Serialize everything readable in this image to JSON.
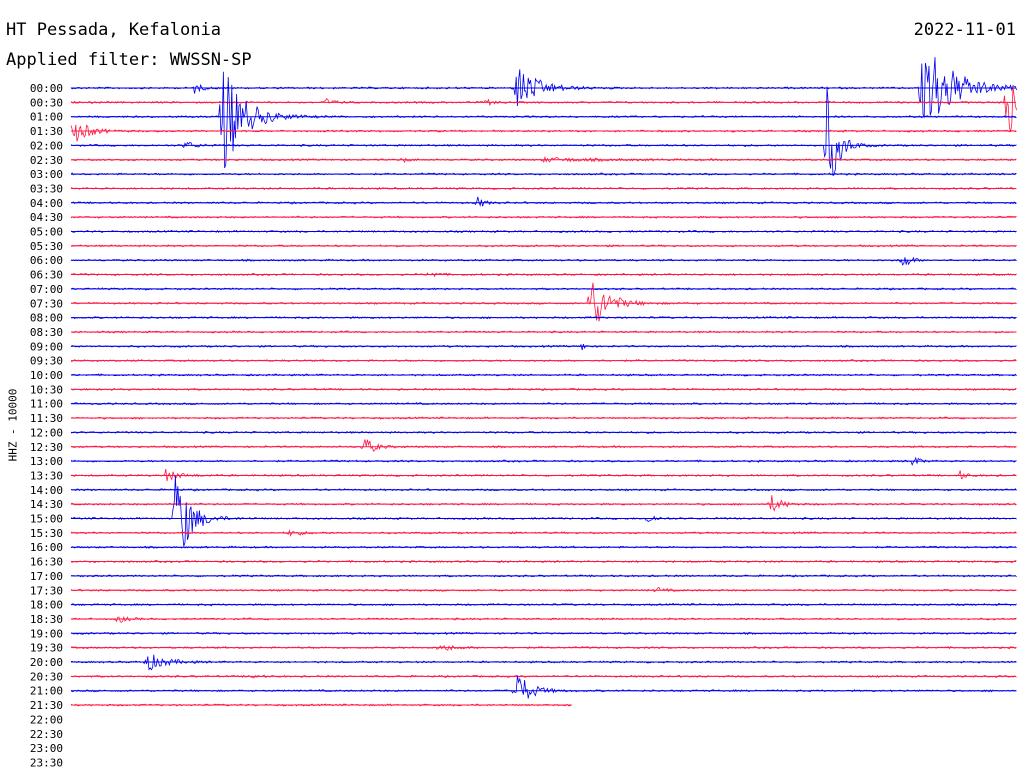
{
  "header": {
    "title": "HT Pessada, Kefalonia",
    "date": "2022-11-01",
    "filter": "Applied filter: WWSSN-SP"
  },
  "colors": {
    "even": "#0000ee",
    "odd": "#ff1744",
    "text": "#000000"
  },
  "chart_data": {
    "type": "line",
    "title": "HT Pessada, Kefalonia",
    "subtitle": "Applied filter: WWSSN-SP",
    "ylabel": "HHZ - 10000",
    "xlabel": "",
    "categories": [
      "00:00",
      "00:30",
      "01:00",
      "01:30",
      "02:00",
      "02:30",
      "03:00",
      "03:30",
      "04:00",
      "04:30",
      "05:00",
      "05:30",
      "06:00",
      "06:30",
      "07:00",
      "07:30",
      "08:00",
      "08:30",
      "09:00",
      "09:30",
      "10:00",
      "10:30",
      "11:00",
      "11:30",
      "12:00",
      "12:30",
      "13:00",
      "13:30",
      "14:00",
      "14:30",
      "15:00",
      "15:30",
      "16:00",
      "16:30",
      "17:00",
      "17:30",
      "18:00",
      "18:30",
      "19:00",
      "19:30",
      "20:00",
      "20:30",
      "21:00",
      "21:30",
      "22:00",
      "22:30",
      "23:00",
      "23:30"
    ],
    "trace_fraction": [
      1,
      1,
      1,
      1,
      1,
      1,
      1,
      1,
      1,
      1,
      1,
      1,
      1,
      1,
      1,
      1,
      1,
      1,
      1,
      1,
      1,
      1,
      1,
      1,
      1,
      1,
      1,
      1,
      1,
      1,
      1,
      1,
      1,
      1,
      1,
      1,
      1,
      1,
      1,
      1,
      1,
      1,
      1,
      0.53,
      0,
      0,
      0,
      0
    ],
    "grid": false,
    "events": [
      {
        "row": 0,
        "x": 0.13,
        "amp": 6,
        "dur": 0.02
      },
      {
        "row": 0,
        "x": 0.47,
        "amp": 26,
        "dur": 0.06
      },
      {
        "row": 0,
        "x": 0.9,
        "amp": 60,
        "dur": 0.08
      },
      {
        "row": 1,
        "x": 0.27,
        "amp": 4,
        "dur": 0.02
      },
      {
        "row": 1,
        "x": 0.44,
        "amp": 3,
        "dur": 0.02
      },
      {
        "row": 1,
        "x": 0.99,
        "amp": 60,
        "dur": 0.02
      },
      {
        "row": 2,
        "x": 0.16,
        "amp": 60,
        "dur": 0.06
      },
      {
        "row": 3,
        "x": 0.0,
        "amp": 18,
        "dur": 0.04
      },
      {
        "row": 4,
        "x": 0.12,
        "amp": 5,
        "dur": 0.03
      },
      {
        "row": 4,
        "x": 0.8,
        "amp": 60,
        "dur": 0.03
      },
      {
        "row": 5,
        "x": 0.35,
        "amp": 3,
        "dur": 0.02
      },
      {
        "row": 5,
        "x": 0.5,
        "amp": 2,
        "dur": 0.16
      },
      {
        "row": 8,
        "x": 0.43,
        "amp": 6,
        "dur": 0.02
      },
      {
        "row": 12,
        "x": 0.88,
        "amp": 10,
        "dur": 0.02
      },
      {
        "row": 13,
        "x": 0.38,
        "amp": 4,
        "dur": 0.02
      },
      {
        "row": 15,
        "x": 0.55,
        "amp": 30,
        "dur": 0.05
      },
      {
        "row": 18,
        "x": 0.54,
        "amp": 5,
        "dur": 0.01
      },
      {
        "row": 25,
        "x": 0.31,
        "amp": 10,
        "dur": 0.03
      },
      {
        "row": 26,
        "x": 0.89,
        "amp": 6,
        "dur": 0.02
      },
      {
        "row": 27,
        "x": 0.1,
        "amp": 6,
        "dur": 0.04
      },
      {
        "row": 27,
        "x": 0.94,
        "amp": 5,
        "dur": 0.02
      },
      {
        "row": 29,
        "x": 0.74,
        "amp": 10,
        "dur": 0.03
      },
      {
        "row": 30,
        "x": 0.11,
        "amp": 60,
        "dur": 0.04
      },
      {
        "row": 30,
        "x": 0.61,
        "amp": 6,
        "dur": 0.02
      },
      {
        "row": 31,
        "x": 0.23,
        "amp": 3,
        "dur": 0.04
      },
      {
        "row": 35,
        "x": 0.62,
        "amp": 3,
        "dur": 0.02
      },
      {
        "row": 37,
        "x": 0.05,
        "amp": 5,
        "dur": 0.02
      },
      {
        "row": 39,
        "x": 0.39,
        "amp": 4,
        "dur": 0.04
      },
      {
        "row": 40,
        "x": 0.08,
        "amp": 10,
        "dur": 0.05
      },
      {
        "row": 41,
        "x": 0.19,
        "amp": 3,
        "dur": 0.02
      },
      {
        "row": 42,
        "x": 0.47,
        "amp": 22,
        "dur": 0.04
      }
    ]
  }
}
